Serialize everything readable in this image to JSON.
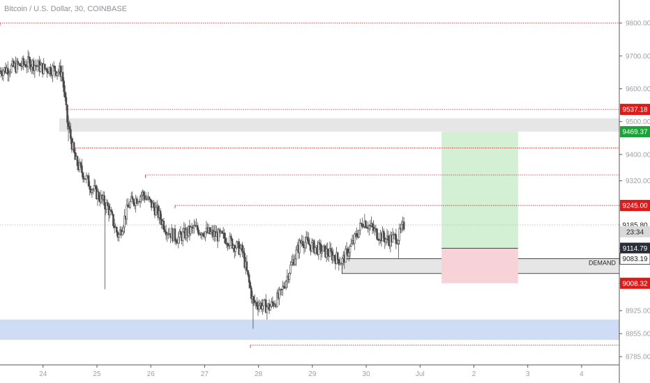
{
  "header": {
    "symbol_title": "Bitcoin / U.S. Dollar, 30, COINBASE"
  },
  "colors": {
    "candle": "#4a4a4a",
    "red_level": "#e01818",
    "green_label": "#17a335",
    "dark_label": "#2a2e39",
    "zone_grey": "#e6e6e6",
    "zone_blue": "#cfdcf5",
    "target_green": "#d4f0d4",
    "stop_red": "#f7d3d7"
  },
  "chart_data": {
    "type": "candlestick",
    "x_ticks": [
      {
        "label": "24",
        "day": 24
      },
      {
        "label": "25",
        "day": 25
      },
      {
        "label": "26",
        "day": 26
      },
      {
        "label": "27",
        "day": 27
      },
      {
        "label": "28",
        "day": 28
      },
      {
        "label": "29",
        "day": 29
      },
      {
        "label": "30",
        "day": 30
      },
      {
        "label": "Jul",
        "day": 31
      },
      {
        "label": "2",
        "day": 32
      },
      {
        "label": "3",
        "day": 33
      },
      {
        "label": "4",
        "day": 34
      }
    ],
    "y_ticks": [
      "9800.00",
      "9700.00",
      "9600.00",
      "9500.00",
      "9400.00",
      "9320.00",
      "9245.00",
      "9185.80",
      "9114.79",
      "9083.19",
      "9008.32",
      "8925.00",
      "8855.00",
      "8785.00"
    ],
    "y_tick_values": [
      9800,
      9700,
      9600,
      9500,
      9400,
      9320,
      9245,
      9185.8,
      9114.79,
      9083.19,
      9008.32,
      8925,
      8855,
      8785
    ],
    "ylim": [
      8760,
      9870
    ],
    "xlim": [
      23.2,
      34.7
    ],
    "price_labels": [
      {
        "text": "9537.18",
        "value": 9537.18,
        "style": "red"
      },
      {
        "text": "9469.37",
        "value": 9469.37,
        "style": "green"
      },
      {
        "text": "9245.00",
        "value": 9245.0,
        "style": "red"
      },
      {
        "text": "9185.80",
        "value": 9185.8,
        "style": "plain"
      },
      {
        "text": "23:34",
        "value": 9165,
        "style": "grey"
      },
      {
        "text": "9114.79",
        "value": 9114.79,
        "style": "dark"
      },
      {
        "text": "9083.19",
        "value": 9083.19,
        "style": "outline"
      },
      {
        "text": "9008.32",
        "value": 9008.32,
        "style": "red"
      }
    ],
    "resistance_levels": [
      {
        "value": 9800,
        "from_day": 23.2
      },
      {
        "value": 9537.18,
        "from_day": 24.45
      },
      {
        "value": 9420,
        "from_day": 24.6
      },
      {
        "value": 9338,
        "from_day": 25.9
      },
      {
        "value": 9245,
        "from_day": 26.45
      },
      {
        "value": 8820,
        "from_day": 27.85
      }
    ],
    "zones": [
      {
        "from_day": 24.3,
        "to_day": 34.7,
        "top": 9510,
        "bottom": 9469.37,
        "color": "zone_grey"
      },
      {
        "from_day": 29.55,
        "to_day": 34.7,
        "top": 9083.19,
        "bottom": 9038,
        "color": "zone_grey",
        "label": "DEMAND"
      },
      {
        "from_day": 23.2,
        "to_day": 34.7,
        "top": 8898,
        "bottom": 8836,
        "color": "zone_blue"
      }
    ],
    "position": {
      "from_day": 31.4,
      "to_day": 32.82,
      "target": 9469.37,
      "entry": 9114.79,
      "stop": 9008.32
    },
    "candles_daily_path": [
      {
        "day": 23.2,
        "price": 9655
      },
      {
        "day": 23.5,
        "price": 9668
      },
      {
        "day": 23.75,
        "price": 9680
      },
      {
        "day": 24.0,
        "price": 9662
      },
      {
        "day": 24.2,
        "price": 9660
      },
      {
        "day": 24.35,
        "price": 9650
      },
      {
        "day": 24.45,
        "price": 9500
      },
      {
        "day": 24.6,
        "price": 9380
      },
      {
        "day": 24.9,
        "price": 9300
      },
      {
        "day": 25.2,
        "price": 9240
      },
      {
        "day": 25.4,
        "price": 9150
      },
      {
        "day": 25.6,
        "price": 9250
      },
      {
        "day": 25.85,
        "price": 9280
      },
      {
        "day": 26.1,
        "price": 9230
      },
      {
        "day": 26.3,
        "price": 9170
      },
      {
        "day": 26.5,
        "price": 9145
      },
      {
        "day": 26.8,
        "price": 9175
      },
      {
        "day": 27.1,
        "price": 9160
      },
      {
        "day": 27.4,
        "price": 9145
      },
      {
        "day": 27.7,
        "price": 9105
      },
      {
        "day": 27.9,
        "price": 8950
      },
      {
        "day": 28.2,
        "price": 8935
      },
      {
        "day": 28.4,
        "price": 8970
      },
      {
        "day": 28.6,
        "price": 9060
      },
      {
        "day": 28.8,
        "price": 9140
      },
      {
        "day": 29.0,
        "price": 9120
      },
      {
        "day": 29.3,
        "price": 9100
      },
      {
        "day": 29.55,
        "price": 9075
      },
      {
        "day": 29.75,
        "price": 9130
      },
      {
        "day": 29.95,
        "price": 9200
      },
      {
        "day": 30.2,
        "price": 9160
      },
      {
        "day": 30.4,
        "price": 9140
      },
      {
        "day": 30.6,
        "price": 9150
      },
      {
        "day": 30.7,
        "price": 9185
      }
    ],
    "demand_label": "DEMAND"
  }
}
